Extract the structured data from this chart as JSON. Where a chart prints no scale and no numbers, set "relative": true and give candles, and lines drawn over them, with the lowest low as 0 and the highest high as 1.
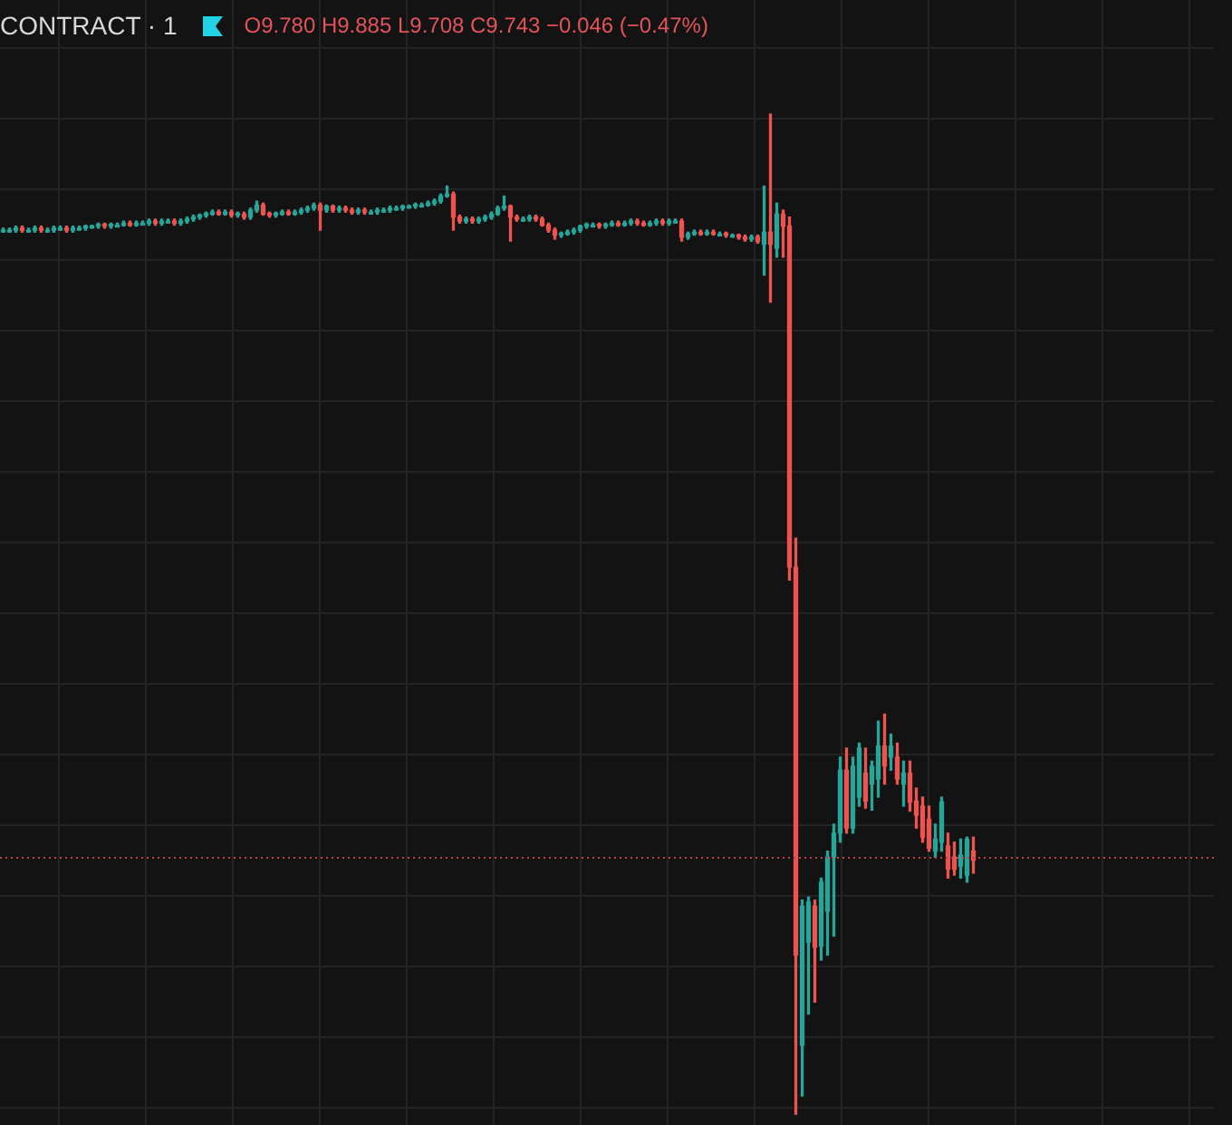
{
  "chart_data": [
    {
      "type": "candlestick",
      "title": "CONTRACT · 1",
      "subtitle": "O9.780 H9.885 L9.708 C9.743 −0.046 (−0.47%)",
      "relative": true,
      "grid": true,
      "legend": false,
      "ref_lines": [
        {
          "axis": "y",
          "value": 0.257,
          "color": "#b4474a",
          "line_style": "dotted"
        }
      ],
      "categories": [
        null,
        null,
        null,
        null,
        null,
        null,
        null,
        null,
        null,
        null,
        null,
        null,
        null,
        null,
        null,
        null,
        null,
        null,
        null,
        null,
        null,
        null,
        null,
        null,
        null,
        null,
        null,
        null,
        null,
        null,
        null,
        null,
        null,
        null,
        null,
        null,
        null,
        null,
        null,
        null,
        null,
        null,
        null,
        null,
        null,
        null,
        null,
        null,
        null,
        null,
        null,
        null,
        null,
        null,
        null,
        null,
        null,
        null,
        null,
        null,
        null,
        null,
        null,
        null,
        null,
        null,
        null,
        null,
        null,
        null,
        null,
        null,
        null,
        null,
        null,
        null,
        null,
        null,
        null,
        null,
        null,
        null,
        null,
        null,
        null,
        null,
        null,
        null,
        null,
        null,
        null,
        null,
        null,
        null,
        null,
        null,
        null,
        null,
        null,
        null,
        null,
        null,
        null,
        null,
        null,
        null,
        null,
        null,
        null,
        null,
        null,
        null,
        null,
        null,
        null,
        null,
        null,
        null,
        null,
        null,
        null,
        null,
        null,
        null,
        null,
        null,
        null,
        null,
        null,
        null,
        null,
        null,
        null,
        null,
        null,
        null,
        null,
        null,
        null,
        null,
        null,
        null,
        null,
        null,
        null,
        null,
        null,
        null,
        null,
        null,
        null,
        null,
        null,
        null
      ],
      "ohlc": [
        [
          0.884,
          0.886,
          0.882,
          0.884
        ],
        [
          0.884,
          0.886,
          0.882,
          0.884
        ],
        [
          0.884,
          0.888,
          0.882,
          0.886
        ],
        [
          0.886,
          0.888,
          0.882,
          0.884
        ],
        [
          0.884,
          0.886,
          0.882,
          0.884
        ],
        [
          0.884,
          0.888,
          0.882,
          0.886
        ],
        [
          0.886,
          0.888,
          0.882,
          0.884
        ],
        [
          0.884,
          0.886,
          0.882,
          0.884
        ],
        [
          0.884,
          0.888,
          0.882,
          0.886
        ],
        [
          0.886,
          0.888,
          0.884,
          0.886
        ],
        [
          0.886,
          0.888,
          0.882,
          0.884
        ],
        [
          0.884,
          0.888,
          0.882,
          0.886
        ],
        [
          0.886,
          0.888,
          0.884,
          0.886
        ],
        [
          0.886,
          0.889,
          0.884,
          0.888
        ],
        [
          0.888,
          0.889,
          0.886,
          0.888
        ],
        [
          0.888,
          0.891,
          0.886,
          0.889
        ],
        [
          0.889,
          0.891,
          0.886,
          0.888
        ],
        [
          0.888,
          0.891,
          0.886,
          0.889
        ],
        [
          0.889,
          0.891,
          0.888,
          0.889
        ],
        [
          0.889,
          0.893,
          0.888,
          0.891
        ],
        [
          0.891,
          0.893,
          0.888,
          0.889
        ],
        [
          0.889,
          0.893,
          0.888,
          0.891
        ],
        [
          0.891,
          0.893,
          0.889,
          0.891
        ],
        [
          0.891,
          0.895,
          0.889,
          0.893
        ],
        [
          0.893,
          0.895,
          0.889,
          0.891
        ],
        [
          0.891,
          0.895,
          0.889,
          0.893
        ],
        [
          0.893,
          0.895,
          0.891,
          0.893
        ],
        [
          0.893,
          0.895,
          0.889,
          0.891
        ],
        [
          0.891,
          0.895,
          0.889,
          0.893
        ],
        [
          0.893,
          0.897,
          0.891,
          0.895
        ],
        [
          0.895,
          0.899,
          0.893,
          0.897
        ],
        [
          0.897,
          0.9,
          0.895,
          0.899
        ],
        [
          0.899,
          0.902,
          0.897,
          0.9
        ],
        [
          0.9,
          0.904,
          0.899,
          0.902
        ],
        [
          0.902,
          0.904,
          0.899,
          0.9
        ],
        [
          0.9,
          0.904,
          0.899,
          0.902
        ],
        [
          0.902,
          0.904,
          0.897,
          0.899
        ],
        [
          0.899,
          0.902,
          0.897,
          0.9
        ],
        [
          0.9,
          0.902,
          0.895,
          0.897
        ],
        [
          0.897,
          0.906,
          0.895,
          0.904
        ],
        [
          0.904,
          0.913,
          0.902,
          0.909
        ],
        [
          0.909,
          0.911,
          0.899,
          0.9
        ],
        [
          0.9,
          0.902,
          0.897,
          0.899
        ],
        [
          0.899,
          0.902,
          0.897,
          0.9
        ],
        [
          0.9,
          0.904,
          0.899,
          0.902
        ],
        [
          0.902,
          0.904,
          0.899,
          0.9
        ],
        [
          0.9,
          0.904,
          0.899,
          0.902
        ],
        [
          0.902,
          0.906,
          0.9,
          0.904
        ],
        [
          0.904,
          0.908,
          0.902,
          0.906
        ],
        [
          0.906,
          0.911,
          0.904,
          0.909
        ],
        [
          0.909,
          0.911,
          0.884,
          0.904
        ],
        [
          0.904,
          0.909,
          0.902,
          0.908
        ],
        [
          0.908,
          0.909,
          0.902,
          0.904
        ],
        [
          0.904,
          0.908,
          0.902,
          0.906
        ],
        [
          0.906,
          0.908,
          0.902,
          0.904
        ],
        [
          0.904,
          0.906,
          0.9,
          0.902
        ],
        [
          0.902,
          0.906,
          0.9,
          0.904
        ],
        [
          0.904,
          0.906,
          0.9,
          0.902
        ],
        [
          0.902,
          0.904,
          0.9,
          0.902
        ],
        [
          0.902,
          0.906,
          0.9,
          0.904
        ],
        [
          0.904,
          0.906,
          0.902,
          0.904
        ],
        [
          0.904,
          0.908,
          0.902,
          0.906
        ],
        [
          0.906,
          0.908,
          0.904,
          0.906
        ],
        [
          0.906,
          0.909,
          0.904,
          0.908
        ],
        [
          0.908,
          0.909,
          0.906,
          0.908
        ],
        [
          0.908,
          0.911,
          0.906,
          0.909
        ],
        [
          0.909,
          0.911,
          0.908,
          0.909
        ],
        [
          0.909,
          0.913,
          0.908,
          0.911
        ],
        [
          0.911,
          0.915,
          0.909,
          0.913
        ],
        [
          0.913,
          0.92,
          0.911,
          0.918
        ],
        [
          0.918,
          0.928,
          0.917,
          0.92
        ],
        [
          0.92,
          0.922,
          0.884,
          0.897
        ],
        [
          0.897,
          0.899,
          0.891,
          0.893
        ],
        [
          0.893,
          0.897,
          0.891,
          0.895
        ],
        [
          0.895,
          0.897,
          0.891,
          0.893
        ],
        [
          0.893,
          0.897,
          0.891,
          0.895
        ],
        [
          0.895,
          0.899,
          0.893,
          0.897
        ],
        [
          0.897,
          0.902,
          0.895,
          0.9
        ],
        [
          0.9,
          0.908,
          0.899,
          0.906
        ],
        [
          0.906,
          0.918,
          0.904,
          0.908
        ],
        [
          0.908,
          0.909,
          0.873,
          0.897
        ],
        [
          0.897,
          0.899,
          0.893,
          0.895
        ],
        [
          0.895,
          0.897,
          0.893,
          0.895
        ],
        [
          0.895,
          0.899,
          0.893,
          0.897
        ],
        [
          0.897,
          0.899,
          0.893,
          0.895
        ],
        [
          0.895,
          0.897,
          0.888,
          0.889
        ],
        [
          0.889,
          0.891,
          0.882,
          0.884
        ],
        [
          0.884,
          0.886,
          0.875,
          0.879
        ],
        [
          0.879,
          0.882,
          0.877,
          0.88
        ],
        [
          0.88,
          0.884,
          0.879,
          0.882
        ],
        [
          0.882,
          0.886,
          0.88,
          0.884
        ],
        [
          0.884,
          0.889,
          0.882,
          0.888
        ],
        [
          0.888,
          0.891,
          0.886,
          0.889
        ],
        [
          0.889,
          0.891,
          0.888,
          0.889
        ],
        [
          0.889,
          0.891,
          0.886,
          0.888
        ],
        [
          0.888,
          0.891,
          0.886,
          0.889
        ],
        [
          0.889,
          0.893,
          0.888,
          0.891
        ],
        [
          0.891,
          0.893,
          0.888,
          0.889
        ],
        [
          0.889,
          0.893,
          0.888,
          0.891
        ],
        [
          0.891,
          0.895,
          0.889,
          0.893
        ],
        [
          0.893,
          0.895,
          0.889,
          0.891
        ],
        [
          0.891,
          0.893,
          0.888,
          0.889
        ],
        [
          0.889,
          0.893,
          0.888,
          0.891
        ],
        [
          0.891,
          0.895,
          0.889,
          0.893
        ],
        [
          0.893,
          0.895,
          0.889,
          0.891
        ],
        [
          0.891,
          0.895,
          0.889,
          0.893
        ],
        [
          0.893,
          0.895,
          0.891,
          0.893
        ],
        [
          0.893,
          0.895,
          0.873,
          0.877
        ],
        [
          0.877,
          0.882,
          0.875,
          0.88
        ],
        [
          0.88,
          0.884,
          0.879,
          0.882
        ],
        [
          0.882,
          0.884,
          0.879,
          0.88
        ],
        [
          0.88,
          0.884,
          0.879,
          0.882
        ],
        [
          0.882,
          0.884,
          0.879,
          0.88
        ],
        [
          0.88,
          0.882,
          0.879,
          0.88
        ],
        [
          0.88,
          0.882,
          0.877,
          0.879
        ],
        [
          0.879,
          0.88,
          0.877,
          0.879
        ],
        [
          0.879,
          0.88,
          0.875,
          0.877
        ],
        [
          0.877,
          0.879,
          0.873,
          0.875
        ],
        [
          0.875,
          0.879,
          0.873,
          0.877
        ],
        [
          0.877,
          0.879,
          0.871,
          0.873
        ],
        [
          0.87,
          0.928,
          0.839,
          0.882
        ],
        [
          0.882,
          1,
          0.812,
          0.87
        ],
        [
          0.866,
          0.911,
          0.857,
          0.9
        ],
        [
          0.9,
          0.904,
          0.857,
          0.888
        ],
        [
          0.888,
          0.897,
          0.534,
          0.547
        ],
        [
          0.547,
          0.576,
          0,
          0.159
        ],
        [
          0.069,
          0.214,
          0.018,
          0.208
        ],
        [
          0.172,
          0.217,
          0.1,
          0.212
        ],
        [
          0.208,
          0.214,
          0.112,
          0.167
        ],
        [
          0.168,
          0.236,
          0.154,
          0.232
        ],
        [
          0.203,
          0.263,
          0.159,
          0.257
        ],
        [
          0.257,
          0.29,
          0.178,
          0.281
        ],
        [
          0.281,
          0.357,
          0.272,
          0.344
        ],
        [
          0.344,
          0.366,
          0.281,
          0.286
        ],
        [
          0.286,
          0.357,
          0.281,
          0.348
        ],
        [
          0.317,
          0.371,
          0.308,
          0.366
        ],
        [
          0.341,
          0.366,
          0.306,
          0.313
        ],
        [
          0.33,
          0.353,
          0.304,
          0.348
        ],
        [
          0.335,
          0.393,
          0.317,
          0.368
        ],
        [
          0.368,
          0.4,
          0.33,
          0.348
        ],
        [
          0.357,
          0.38,
          0.344,
          0.368
        ],
        [
          0.357,
          0.371,
          0.33,
          0.335
        ],
        [
          0.33,
          0.353,
          0.308,
          0.341
        ],
        [
          0.341,
          0.353,
          0.303,
          0.312
        ],
        [
          0.313,
          0.326,
          0.286,
          0.299
        ],
        [
          0.308,
          0.317,
          0.272,
          0.277
        ],
        [
          0.295,
          0.308,
          0.263,
          0.266
        ],
        [
          0.263,
          0.29,
          0.257,
          0.275
        ],
        [
          0.272,
          0.317,
          0.263,
          0.312
        ],
        [
          0.268,
          0.281,
          0.236,
          0.245
        ],
        [
          0.257,
          0.272,
          0.239,
          0.245
        ],
        [
          0.248,
          0.275,
          0.236,
          0.259
        ],
        [
          0.239,
          0.277,
          0.232,
          0.275
        ],
        [
          0.263,
          0.277,
          0.241,
          0.254
        ]
      ]
    }
  ]
}
